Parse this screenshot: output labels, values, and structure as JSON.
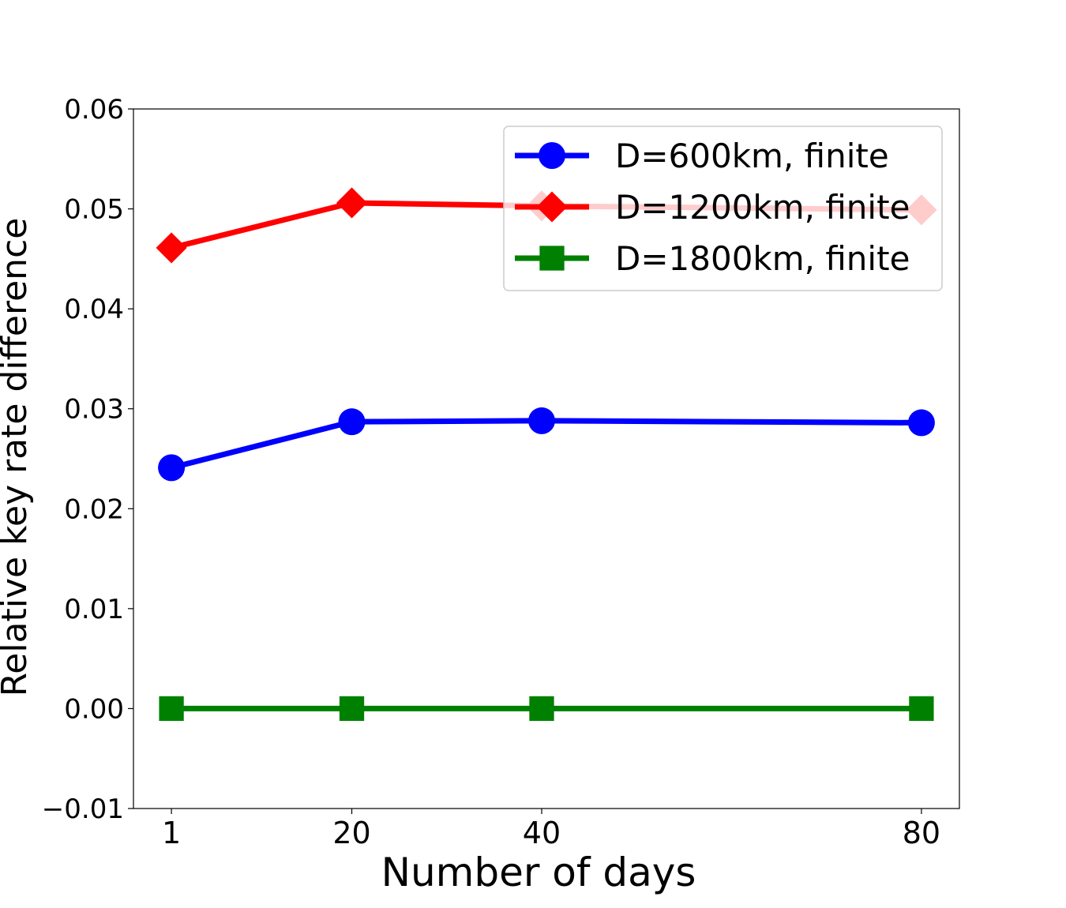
{
  "chart_data": {
    "type": "line",
    "title": "",
    "xlabel": "Number of days",
    "ylabel": "Relative key rate difference",
    "x": [
      1,
      20,
      40,
      80
    ],
    "xticks": [
      1,
      20,
      40,
      80
    ],
    "xtick_labels": [
      "1",
      "20",
      "40",
      "80"
    ],
    "xlim": [
      -3,
      84
    ],
    "ylim": [
      -0.01,
      0.06
    ],
    "yticks": [
      -0.01,
      0.0,
      0.01,
      0.02,
      0.03,
      0.04,
      0.05,
      0.06
    ],
    "ytick_labels": [
      "−0.01",
      "0.00",
      "0.01",
      "0.02",
      "0.03",
      "0.04",
      "0.05",
      "0.06"
    ],
    "grid": false,
    "legend_position": "top-right",
    "series": [
      {
        "name": "D=600km, finite",
        "color": "#0000ff",
        "marker": "circle",
        "values": [
          0.0241,
          0.0287,
          0.0288,
          0.0286
        ]
      },
      {
        "name": "D=1200km, finite",
        "color": "#ff0000",
        "marker": "diamond",
        "values": [
          0.0461,
          0.0506,
          0.0503,
          0.0499
        ]
      },
      {
        "name": "D=1800km, finite",
        "color": "#008000",
        "marker": "square",
        "values": [
          0.0,
          0.0,
          0.0,
          0.0
        ]
      }
    ]
  }
}
